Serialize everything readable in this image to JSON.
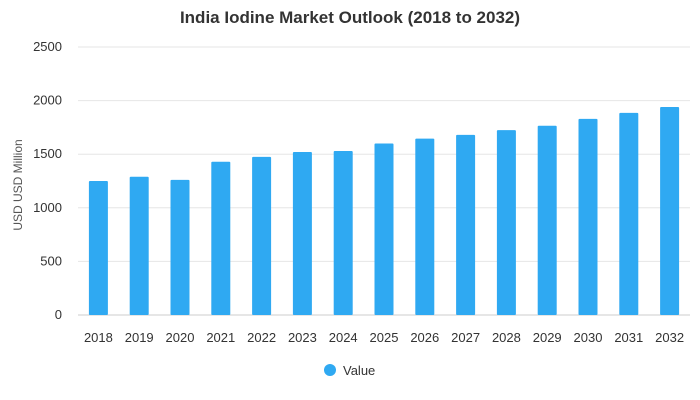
{
  "chart_data": {
    "type": "bar",
    "title": "India Iodine Market Outlook (2018 to 2032)",
    "xlabel": "",
    "ylabel": "USD USD Million",
    "categories": [
      "2018",
      "2019",
      "2020",
      "2021",
      "2022",
      "2023",
      "2024",
      "2025",
      "2026",
      "2027",
      "2028",
      "2029",
      "2030",
      "2031",
      "2032"
    ],
    "series": [
      {
        "name": "Value",
        "values": [
          1250,
          1290,
          1260,
          1430,
          1475,
          1520,
          1530,
          1600,
          1645,
          1680,
          1725,
          1765,
          1830,
          1885,
          1940
        ]
      }
    ],
    "ylim": [
      0,
      2500
    ],
    "yticks": [
      0,
      500,
      1000,
      1500,
      2000,
      2500
    ],
    "grid": true,
    "legend_position": "bottom-center",
    "bar_color": "#2fa9f2",
    "grid_color": "#e6e6e6",
    "axis_color": "#cccccc"
  }
}
